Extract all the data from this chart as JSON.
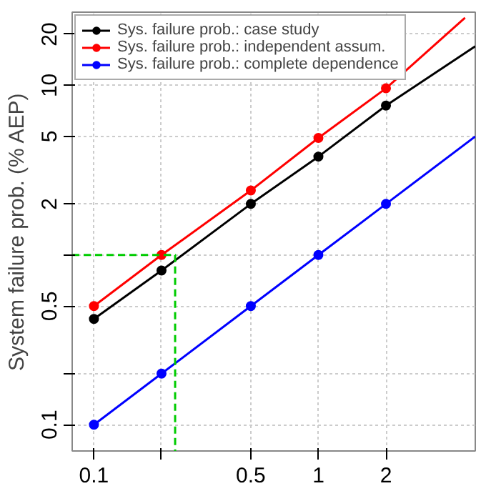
{
  "chart_data": {
    "type": "line",
    "ylabel": "System failure prob. (% AEP)",
    "log": "xy",
    "grid": true,
    "legend": "top left",
    "marker": "circle",
    "line_style": "solid",
    "xlim": [
      0.08,
      5
    ],
    "ylim": [
      0.07,
      27
    ],
    "xticks": [
      0.1,
      {
        "value": 0.2,
        "label": null
      },
      0.5,
      1,
      2
    ],
    "yticks": [
      0.1,
      {
        "value": 0.2,
        "label": null
      },
      0.5,
      {
        "value": 1,
        "label": null
      },
      2,
      5,
      10,
      20
    ],
    "series": [
      {
        "name": "Sys. failure prob.: case study",
        "color": "#000000",
        "x": [
          0.1,
          0.2,
          0.5,
          1,
          2
        ],
        "values": [
          0.42,
          0.81,
          2,
          3.8,
          7.6
        ]
      },
      {
        "name": "Sys. failure prob.: independent assum.",
        "color": "#ff0000",
        "x": [
          0.1,
          0.2,
          0.5,
          1,
          2
        ],
        "values": [
          0.5,
          1,
          2.4,
          4.9,
          9.6
        ]
      },
      {
        "name": "Sys. failure prob.: complete dependence",
        "color": "#0000ff",
        "x": [
          0.1,
          0.2,
          0.5,
          1,
          2
        ],
        "values": [
          0.1,
          0.2,
          0.5,
          1,
          2
        ]
      },
      {
        "color": "#000000",
        "marker": "none",
        "x": [
          2,
          5
        ],
        "values": [
          7.6,
          17
        ]
      },
      {
        "color": "#ff0000",
        "marker": "none",
        "x": [
          2,
          4.5
        ],
        "values": [
          9.6,
          25
        ]
      },
      {
        "color": "#0000ff",
        "marker": "none",
        "x": [
          2,
          5
        ],
        "values": [
          2,
          5
        ]
      },
      {
        "color": "#00cc00",
        "marker": "none",
        "line_style": "dashed",
        "x": [
          0.08,
          0.23,
          0.23
        ],
        "values": [
          1,
          1,
          0.07
        ]
      }
    ]
  }
}
